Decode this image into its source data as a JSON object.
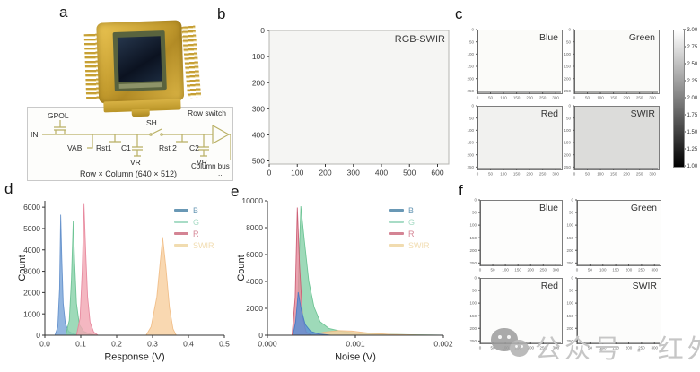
{
  "figure": {
    "panel_letters": {
      "a": "a",
      "b": "b",
      "c": "c",
      "d": "d",
      "e": "e",
      "f": "f"
    },
    "watermark_text": "公众号 · 红外芯闻"
  },
  "panel_a": {
    "circuit": {
      "gpol": "GPOL",
      "in_label": "IN",
      "dots_left": "...",
      "vab": "VAB",
      "rst1": "Rst1",
      "c1": "C1",
      "sh": "SH",
      "rst2": "Rst 2",
      "c2": "C2",
      "vr1": "VR",
      "vr2": "VR",
      "row_switch": "Row switch",
      "column_bus": "Column bus",
      "caption": "Row × Column (640 × 512)",
      "dots_right": "..."
    }
  },
  "chart_data": [
    {
      "id": "b",
      "type": "heatmap",
      "title": "RGB-SWIR",
      "x_range": [
        0,
        640
      ],
      "y_range": [
        0,
        512
      ],
      "x_ticks": [
        0,
        100,
        200,
        300,
        400,
        500,
        600
      ],
      "y_ticks": [
        0,
        100,
        200,
        300,
        400,
        500
      ],
      "fill": "#f5f5f3",
      "description": "uniform near-white RGB-SWIR response image, 640 x 512 pixels"
    },
    {
      "id": "c",
      "type": "heatmap",
      "x_ticks": [
        0,
        50,
        100,
        150,
        200,
        250,
        300
      ],
      "y_ticks": [
        0,
        50,
        100,
        150,
        200,
        250
      ],
      "colorbar": {
        "min": 1.0,
        "max": 3.0,
        "ticks": [
          "3.00",
          "2.75",
          "2.50",
          "2.25",
          "2.00",
          "1.75",
          "1.50",
          "1.25",
          "1.00"
        ]
      },
      "subpanels": [
        {
          "label": "Blue",
          "fill": "#fbfbf9",
          "value_approx": 2.95
        },
        {
          "label": "Green",
          "fill": "#fafaf8",
          "value_approx": 2.95
        },
        {
          "label": "Red",
          "fill": "#f1f1ef",
          "value_approx": 2.9
        },
        {
          "label": "SWIR",
          "fill": "#dcdcda",
          "value_approx": 2.6
        }
      ]
    },
    {
      "id": "d",
      "type": "area",
      "xlabel": "Response (V)",
      "ylabel": "Count",
      "xlim": [
        0,
        0.5
      ],
      "ylim": [
        0,
        6300
      ],
      "x_tick_values": [
        0,
        0.1,
        0.2,
        0.3,
        0.4,
        0.5
      ],
      "x_tick_labels": [
        "0.0",
        "0.1",
        "0.2",
        "0.3",
        "0.4",
        "0.5"
      ],
      "y_tick_values": [
        0,
        1000,
        2000,
        3000,
        4000,
        5000,
        6000
      ],
      "legend": [
        {
          "label": "B",
          "color": "#6998b5"
        },
        {
          "label": "G",
          "color": "#a8dcc6"
        },
        {
          "label": "R",
          "color": "#d48494"
        },
        {
          "label": "SWIR",
          "color": "#f1dcb0"
        }
      ],
      "series": [
        {
          "name": "B",
          "fill": "#7ba6d9",
          "stroke": "#5d8cc9",
          "points": [
            [
              0.028,
              0
            ],
            [
              0.036,
              400
            ],
            [
              0.041,
              2200
            ],
            [
              0.044,
              5650
            ],
            [
              0.047,
              3600
            ],
            [
              0.051,
              1500
            ],
            [
              0.057,
              550
            ],
            [
              0.066,
              180
            ],
            [
              0.082,
              50
            ],
            [
              0.1,
              0
            ]
          ]
        },
        {
          "name": "G",
          "fill": "#89d2a9",
          "stroke": "#65c08e",
          "points": [
            [
              0.058,
              0
            ],
            [
              0.068,
              700
            ],
            [
              0.074,
              2600
            ],
            [
              0.079,
              5350
            ],
            [
              0.083,
              3400
            ],
            [
              0.088,
              1500
            ],
            [
              0.096,
              500
            ],
            [
              0.108,
              180
            ],
            [
              0.128,
              40
            ],
            [
              0.145,
              0
            ]
          ]
        },
        {
          "name": "R",
          "fill": "#f2a7b3",
          "stroke": "#e68299",
          "points": [
            [
              0.088,
              0
            ],
            [
              0.098,
              800
            ],
            [
              0.104,
              3000
            ],
            [
              0.109,
              6150
            ],
            [
              0.114,
              3800
            ],
            [
              0.119,
              1800
            ],
            [
              0.126,
              600
            ],
            [
              0.136,
              150
            ],
            [
              0.148,
              0
            ]
          ]
        },
        {
          "name": "SWIR",
          "fill": "#f8d0a0",
          "stroke": "#efba82",
          "points": [
            [
              0.282,
              0
            ],
            [
              0.296,
              400
            ],
            [
              0.312,
              1800
            ],
            [
              0.328,
              4600
            ],
            [
              0.337,
              3200
            ],
            [
              0.347,
              1300
            ],
            [
              0.357,
              300
            ],
            [
              0.366,
              0
            ]
          ]
        }
      ]
    },
    {
      "id": "e",
      "type": "area",
      "xlabel": "Noise (V)",
      "ylabel": "Count",
      "xlim": [
        0,
        0.002
      ],
      "ylim": [
        0,
        10000
      ],
      "x_tick_values": [
        0,
        0.001,
        0.002
      ],
      "x_tick_labels": [
        "0.000",
        "0.001",
        "0.002"
      ],
      "y_tick_values": [
        0,
        2000,
        4000,
        6000,
        8000,
        10000
      ],
      "legend": [
        {
          "label": "B",
          "color": "#6998b5"
        },
        {
          "label": "G",
          "color": "#a8dcc6"
        },
        {
          "label": "R",
          "color": "#d48494"
        },
        {
          "label": "SWIR",
          "color": "#f1dcb0"
        }
      ],
      "series": [
        {
          "name": "G",
          "fill": "#89d2a9",
          "stroke": "#65c08e",
          "points": [
            [
              0.0003,
              0
            ],
            [
              0.000345,
              2500
            ],
            [
              0.00038,
              9600
            ],
            [
              0.00042,
              7000
            ],
            [
              0.00047,
              4000
            ],
            [
              0.00053,
              2100
            ],
            [
              0.0006,
              1000
            ],
            [
              0.0007,
              500
            ],
            [
              0.00085,
              280
            ],
            [
              0.00105,
              150
            ],
            [
              0.00135,
              70
            ],
            [
              0.0017,
              25
            ],
            [
              0.002,
              0
            ]
          ]
        },
        {
          "name": "R",
          "fill": "#e58e9e",
          "stroke": "#c9556d",
          "points": [
            [
              0.00028,
              0
            ],
            [
              0.000315,
              2800
            ],
            [
              0.00034,
              9500
            ],
            [
              0.000365,
              5200
            ],
            [
              0.0004,
              1300
            ],
            [
              0.00044,
              250
            ],
            [
              0.0005,
              0
            ]
          ]
        },
        {
          "name": "SWIR",
          "fill": "#f8d0a0",
          "stroke": "#efba82",
          "points": [
            [
              0.0005,
              0
            ],
            [
              0.00064,
              220
            ],
            [
              0.0008,
              350
            ],
            [
              0.00096,
              310
            ],
            [
              0.00115,
              160
            ],
            [
              0.0014,
              60
            ],
            [
              0.00175,
              15
            ],
            [
              0.00195,
              0
            ]
          ]
        },
        {
          "name": "B",
          "fill": "#5b8fd6",
          "stroke": "#4479c4",
          "points": [
            [
              0.00029,
              0
            ],
            [
              0.00032,
              1000
            ],
            [
              0.00035,
              3200
            ],
            [
              0.000385,
              1900
            ],
            [
              0.00043,
              800
            ],
            [
              0.00049,
              300
            ],
            [
              0.00058,
              100
            ],
            [
              0.00072,
              0
            ]
          ]
        }
      ]
    },
    {
      "id": "f",
      "type": "heatmap",
      "x_ticks": [
        0,
        50,
        100,
        150,
        200,
        250,
        300
      ],
      "y_ticks": [
        0,
        50,
        100,
        150,
        200,
        250
      ],
      "subpanels": [
        {
          "label": "Blue",
          "fill": "#fdfdfc"
        },
        {
          "label": "Green",
          "fill": "#fdfdfc"
        },
        {
          "label": "Red",
          "fill": "#fcfcfb"
        },
        {
          "label": "SWIR",
          "fill": "#fcfcfb"
        }
      ]
    }
  ]
}
